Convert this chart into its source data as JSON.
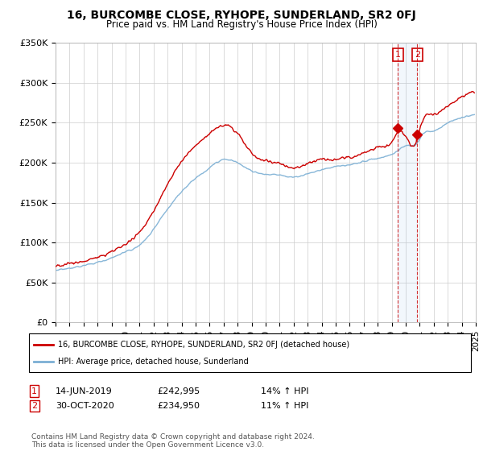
{
  "title": "16, BURCOMBE CLOSE, RYHOPE, SUNDERLAND, SR2 0FJ",
  "subtitle": "Price paid vs. HM Land Registry's House Price Index (HPI)",
  "legend_line1": "16, BURCOMBE CLOSE, RYHOPE, SUNDERLAND, SR2 0FJ (detached house)",
  "legend_line2": "HPI: Average price, detached house, Sunderland",
  "transaction1_date": "14-JUN-2019",
  "transaction1_price": "£242,995",
  "transaction1_hpi": "14% ↑ HPI",
  "transaction2_date": "30-OCT-2020",
  "transaction2_price": "£234,950",
  "transaction2_hpi": "11% ↑ HPI",
  "footer": "Contains HM Land Registry data © Crown copyright and database right 2024.\nThis data is licensed under the Open Government Licence v3.0.",
  "red_color": "#cc0000",
  "blue_color": "#7bafd4",
  "ylim": [
    0,
    350000
  ],
  "yticks": [
    0,
    50000,
    100000,
    150000,
    200000,
    250000,
    300000,
    350000
  ],
  "ytick_labels": [
    "£0",
    "£50K",
    "£100K",
    "£150K",
    "£200K",
    "£250K",
    "£300K",
    "£350K"
  ],
  "marker1_x": 2019.45,
  "marker1_y": 242995,
  "marker2_x": 2020.83,
  "marker2_y": 234950,
  "vline1_x": 2019.45,
  "vline2_x": 2020.83,
  "xmin": 1995,
  "xmax": 2025
}
